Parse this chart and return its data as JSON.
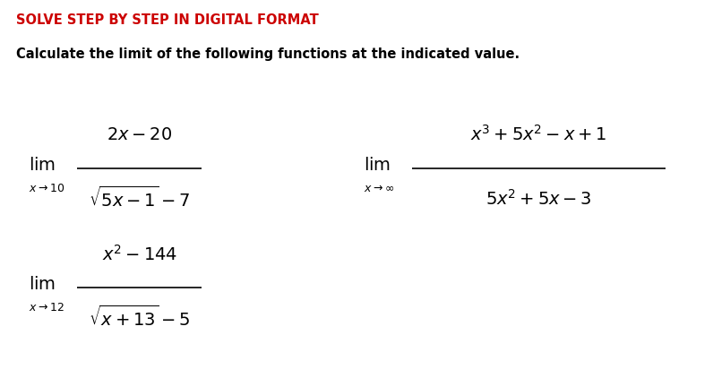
{
  "title_text": "SOLVE STEP BY STEP IN DIGITAL FORMAT",
  "title_color": "#CC0000",
  "subtitle_text": "Calculate the limit of the following functions at the indicated value.",
  "subtitle_color": "#000000",
  "background_color": "#FFFFFF",
  "figsize": [
    7.96,
    4.22
  ],
  "dpi": 100,
  "fs_title": 10.5,
  "fs_subtitle": 10.5,
  "fs_lim": 14,
  "fs_sub": 9,
  "fs_math": 14
}
